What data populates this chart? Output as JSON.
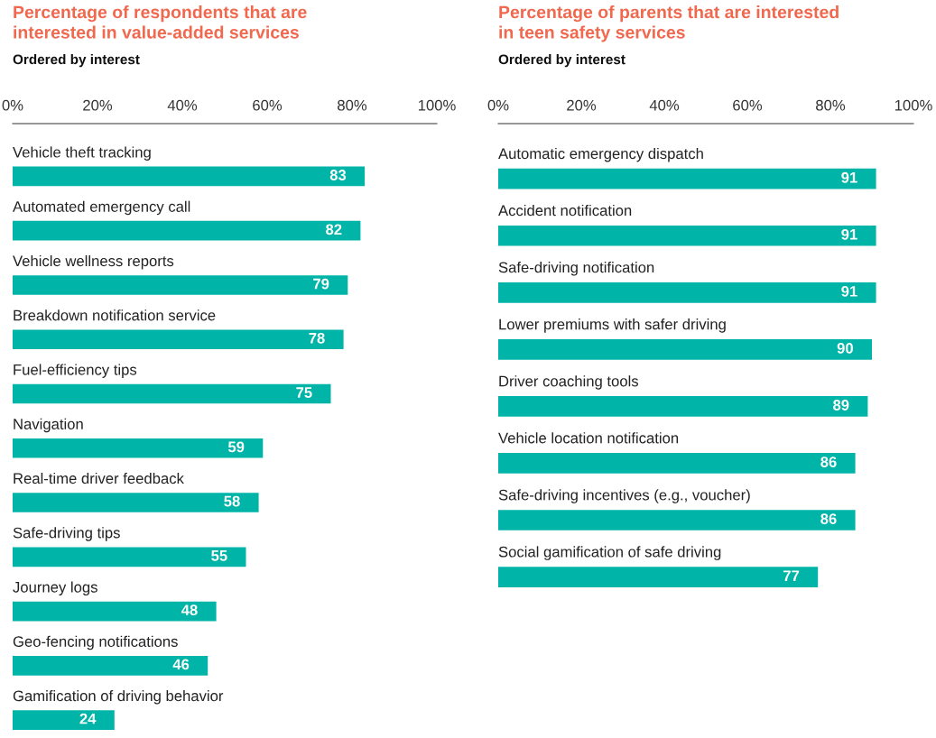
{
  "chart_data": [
    {
      "type": "bar",
      "orientation": "horizontal",
      "title": "Percentage of respondents that are\ninterested in value-added services",
      "subtitle": "Ordered by interest",
      "categories": [
        "Vehicle theft tracking",
        "Automated emergency call",
        "Vehicle wellness reports",
        "Breakdown notification service",
        "Fuel-efficiency tips",
        "Navigation",
        "Real-time driver feedback",
        "Safe-driving tips",
        "Journey logs",
        "Geo-fencing notifications",
        "Gamification of driving behavior"
      ],
      "values": [
        83,
        82,
        79,
        78,
        75,
        59,
        58,
        55,
        48,
        46,
        24
      ],
      "color": "#00b5a8",
      "xlim": [
        0,
        100
      ],
      "xticks": [
        {
          "value": 0,
          "label": "0%"
        },
        {
          "value": 20,
          "label": "20%"
        },
        {
          "value": 40,
          "label": "40%"
        },
        {
          "value": 60,
          "label": "60%"
        },
        {
          "value": 80,
          "label": "80%"
        },
        {
          "value": 100,
          "label": "100%"
        }
      ],
      "data_labels": true,
      "grid": false
    },
    {
      "type": "bar",
      "orientation": "horizontal",
      "title": "Percentage of parents that are interested\nin teen safety services",
      "subtitle": "Ordered by interest",
      "categories": [
        "Automatic emergency dispatch",
        "Accident notification",
        "Safe-driving notification",
        "Lower premiums with safer driving",
        "Driver coaching tools",
        "Vehicle location notification",
        "Safe-driving incentives (e.g., voucher)",
        "Social gamification of safe driving"
      ],
      "values": [
        91,
        91,
        91,
        90,
        89,
        86,
        86,
        77
      ],
      "color": "#00b5a8",
      "xlim": [
        0,
        100
      ],
      "xticks": [
        {
          "value": 0,
          "label": "0%"
        },
        {
          "value": 20,
          "label": "20%"
        },
        {
          "value": 40,
          "label": "40%"
        },
        {
          "value": 60,
          "label": "60%"
        },
        {
          "value": 80,
          "label": "80%"
        },
        {
          "value": 100,
          "label": "100%"
        }
      ],
      "data_labels": true,
      "grid": false
    }
  ]
}
